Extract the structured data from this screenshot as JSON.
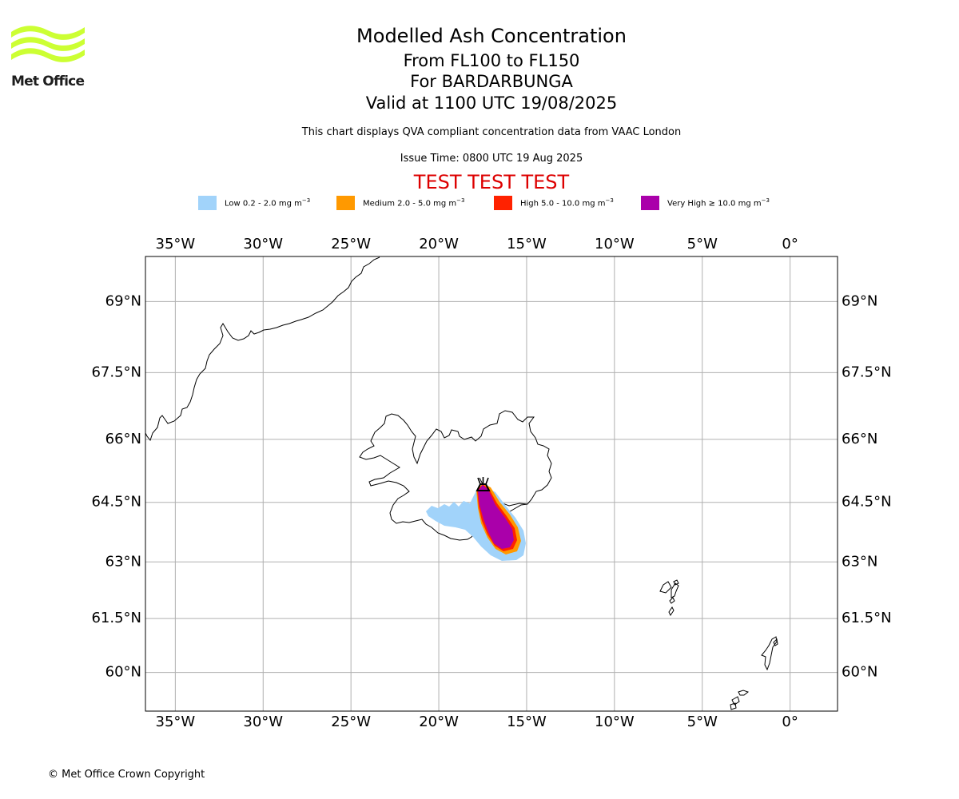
{
  "logo": {
    "text": "Met Office",
    "color": "#ccff33"
  },
  "title": {
    "line1": "Modelled Ash Concentration",
    "line2": "From FL100 to FL150",
    "line3": "For BARDARBUNGA",
    "line4": "Valid at 1100 UTC 19/08/2025"
  },
  "description": "This chart displays QVA compliant concentration data from VAAC London",
  "issue_time": "Issue Time: 0800 UTC 19 Aug 2025",
  "test_banner": {
    "text": "TEST TEST TEST",
    "color": "#dd0000"
  },
  "legend": [
    {
      "label": "Low 0.2 - 2.0 mg m",
      "color": "#a1d3fa"
    },
    {
      "label": "Medium 2.0 - 5.0 mg m",
      "color": "#ff9900"
    },
    {
      "label": "High 5.0 - 10.0 mg m",
      "color": "#ff2200"
    },
    {
      "label": "Very High ≥ 10.0 mg m",
      "color": "#aa00aa"
    }
  ],
  "legend_unit_exponent": "−3",
  "map": {
    "lon_range": [
      -36.7,
      2.7
    ],
    "lat_range": [
      59.1,
      69.9
    ],
    "lon_ticks": [
      {
        "value": -35,
        "label": "35°W"
      },
      {
        "value": -30,
        "label": "30°W"
      },
      {
        "value": -25,
        "label": "25°W"
      },
      {
        "value": -20,
        "label": "20°W"
      },
      {
        "value": -15,
        "label": "15°W"
      },
      {
        "value": -10,
        "label": "10°W"
      },
      {
        "value": -5,
        "label": "5°W"
      },
      {
        "value": 0,
        "label": "0°"
      }
    ],
    "lat_ticks": [
      {
        "value": 69,
        "label": "69°N"
      },
      {
        "value": 67.5,
        "label": "67.5°N"
      },
      {
        "value": 66,
        "label": "66°N"
      },
      {
        "value": 64.5,
        "label": "64.5°N"
      },
      {
        "value": 63,
        "label": "63°N"
      },
      {
        "value": 61.5,
        "label": "61.5°N"
      },
      {
        "value": 60,
        "label": "60°N"
      }
    ],
    "volcano": {
      "name": "BARDARBUNGA",
      "lon": -17.5,
      "lat": 64.6
    }
  },
  "copyright": "© Met Office Crown Copyright"
}
